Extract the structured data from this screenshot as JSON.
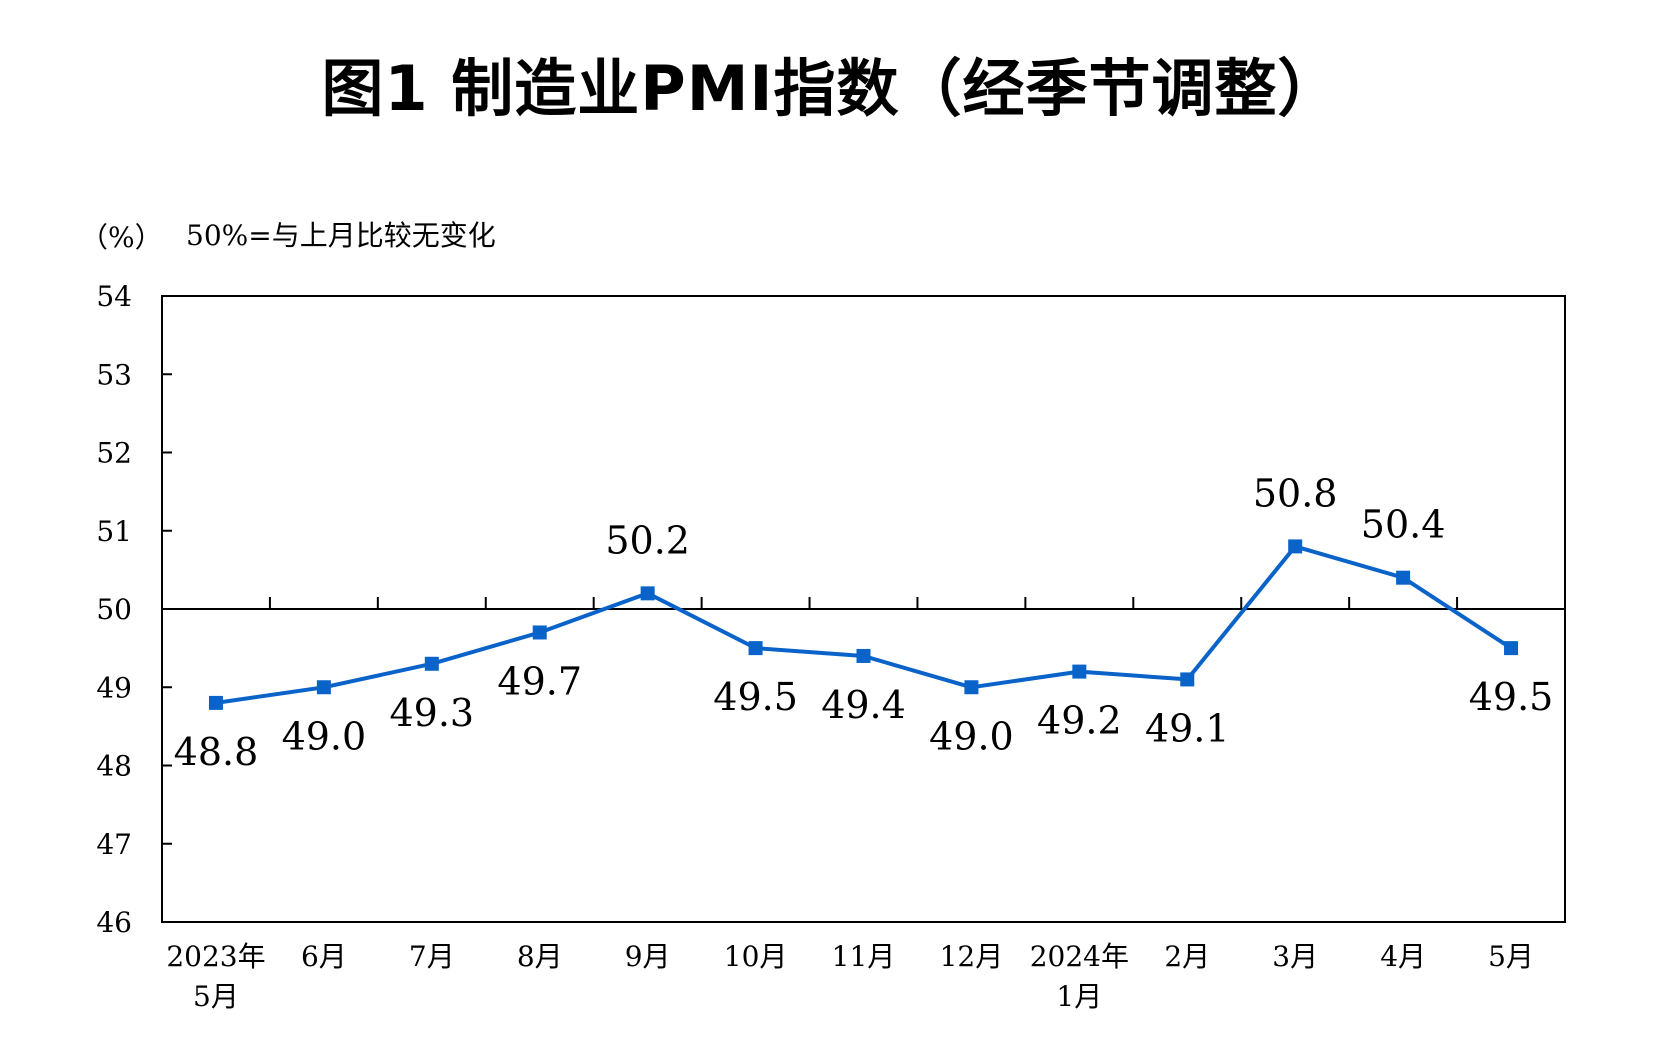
{
  "title": "图1 制造业PMI指数（经季节调整）",
  "unit_label": "（%）",
  "reference_note": "50%=与上月比较无变化",
  "colors": {
    "series": "#0a63c9",
    "axis": "#000000"
  },
  "chart_data": {
    "type": "line",
    "title": "图1 制造业PMI指数（经季节调整）",
    "ylabel": "（%）",
    "xlabel": "",
    "ylim": [
      46,
      54
    ],
    "yticks": [
      46,
      47,
      48,
      49,
      50,
      51,
      52,
      53,
      54
    ],
    "reference_line": 50,
    "categories": [
      [
        "2023年",
        "5月"
      ],
      [
        "6月"
      ],
      [
        "7月"
      ],
      [
        "8月"
      ],
      [
        "9月"
      ],
      [
        "10月"
      ],
      [
        "11月"
      ],
      [
        "12月"
      ],
      [
        "2024年",
        "1月"
      ],
      [
        "2月"
      ],
      [
        "3月"
      ],
      [
        "4月"
      ],
      [
        "5月"
      ]
    ],
    "series": [
      {
        "values": [
          48.8,
          49.0,
          49.3,
          49.7,
          50.2,
          49.5,
          49.4,
          49.0,
          49.2,
          49.1,
          50.8,
          50.4,
          49.5
        ],
        "data_labels": [
          "48.8",
          "49.0",
          "49.3",
          "49.7",
          "50.2",
          "49.5",
          "49.4",
          "49.0",
          "49.2",
          "49.1",
          "50.8",
          "50.4",
          "49.5"
        ],
        "label_positions": [
          "below",
          "below",
          "below",
          "below",
          "above",
          "below",
          "below",
          "below",
          "below",
          "below",
          "above",
          "above",
          "below"
        ]
      }
    ],
    "grid": false,
    "legend": "none"
  }
}
